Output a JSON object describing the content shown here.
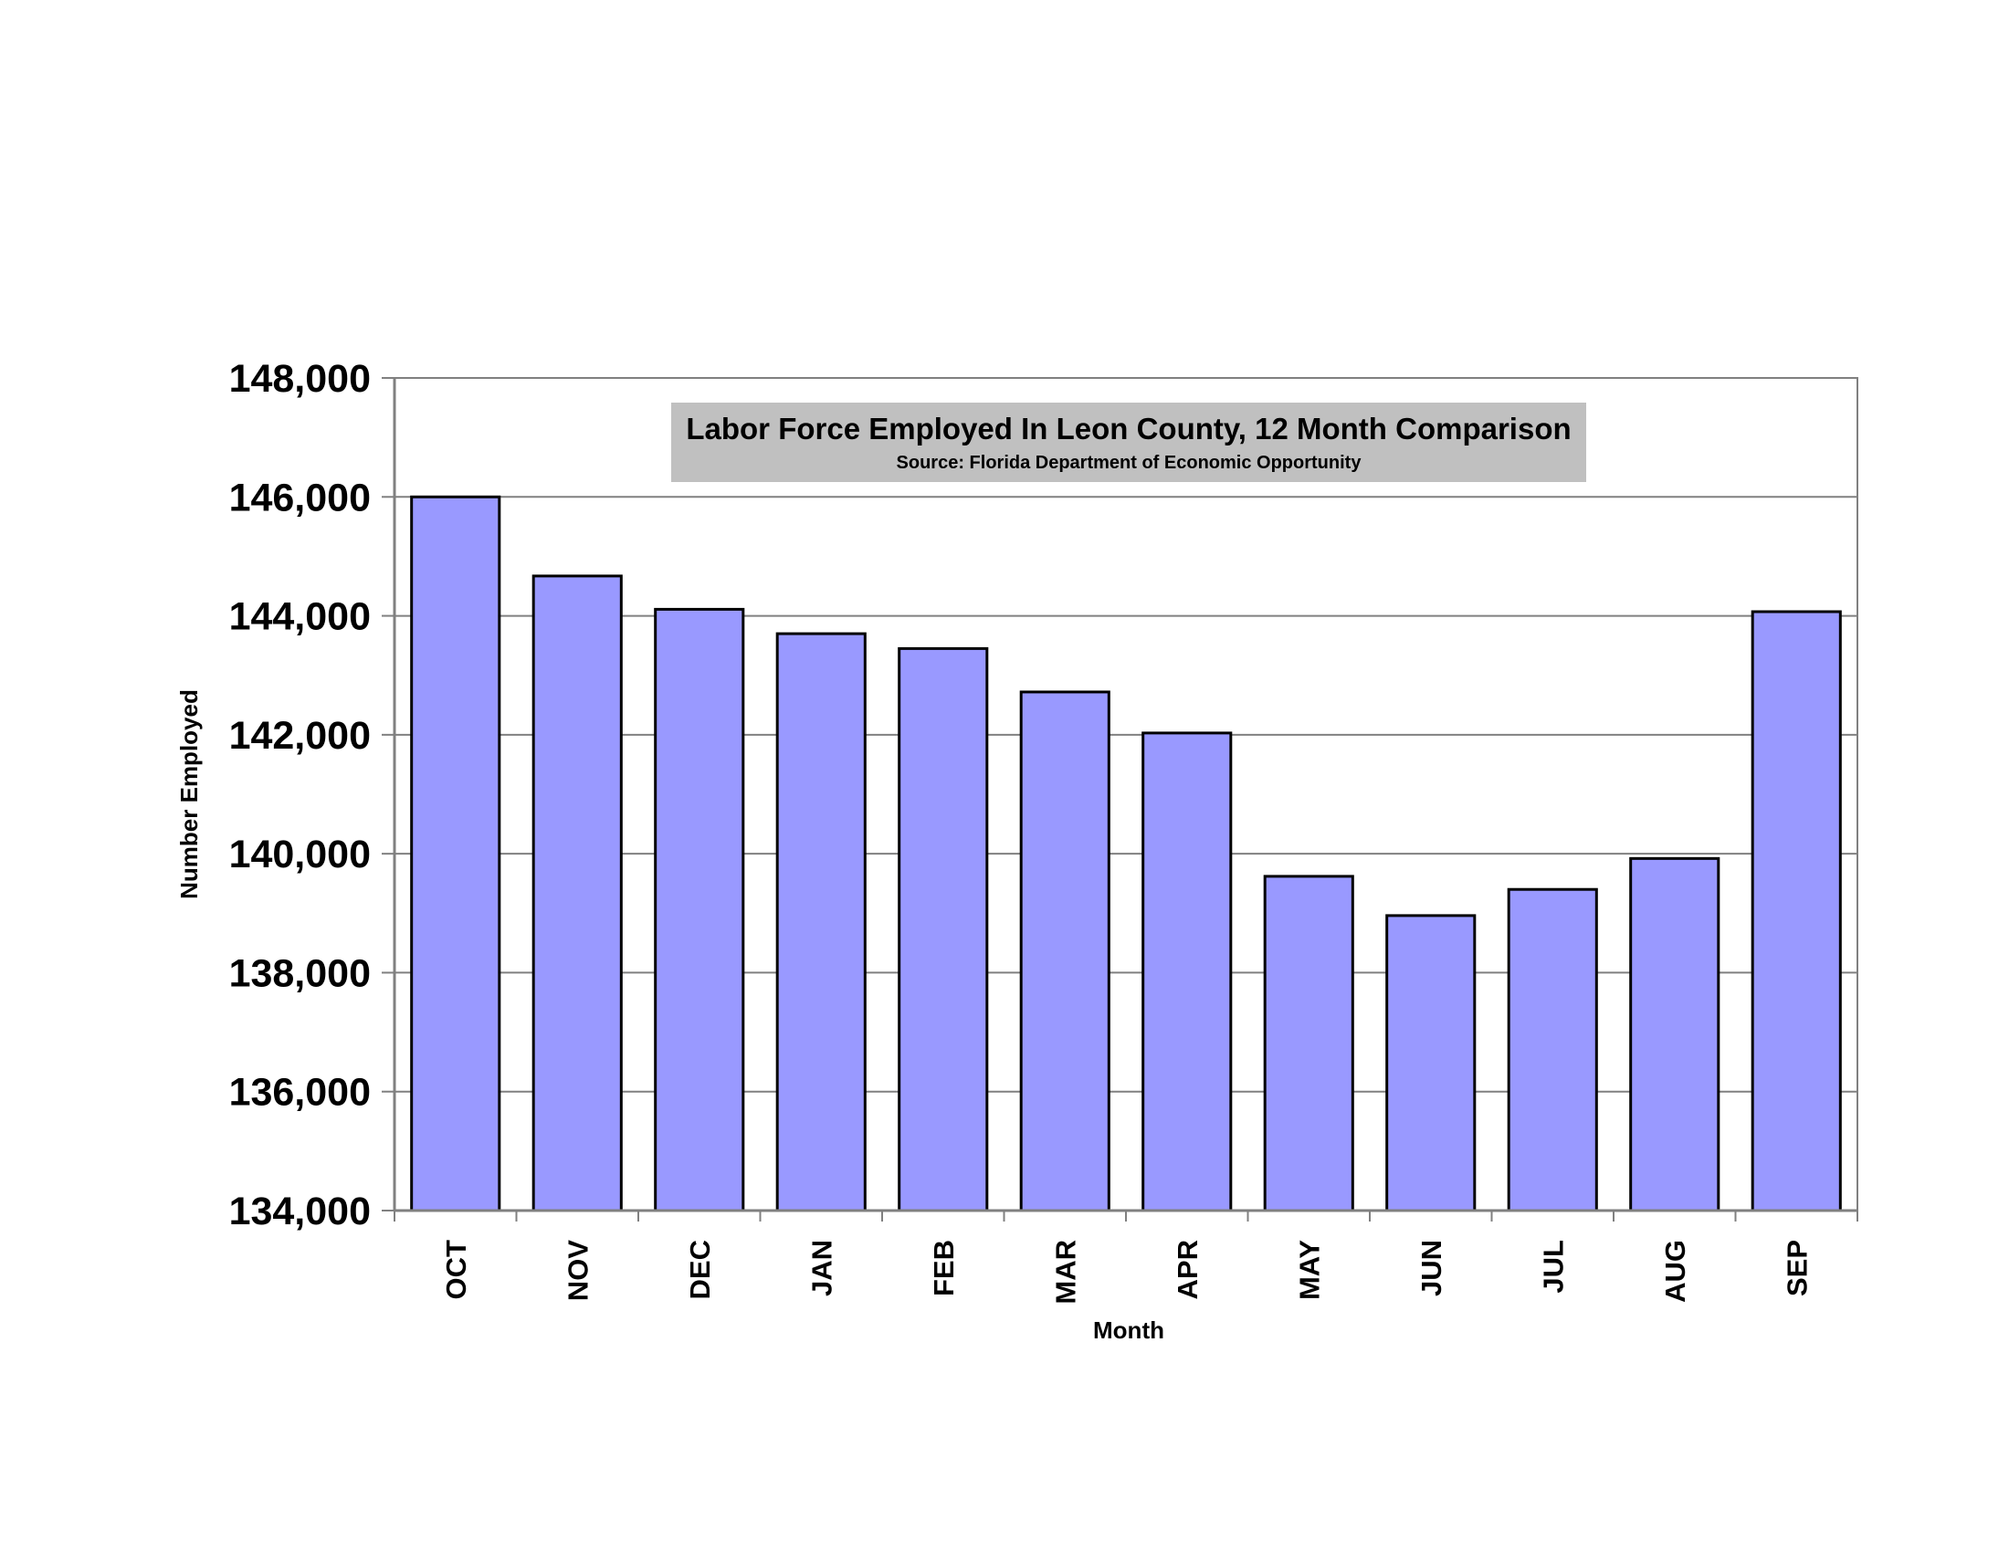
{
  "chart_data": {
    "type": "bar",
    "title": "Labor Force Employed In Leon County, 12 Month Comparison",
    "subtitle": "Source: Florida Department of Economic Opportunity",
    "xlabel": "Month",
    "ylabel": "Number Employed",
    "categories": [
      "OCT",
      "NOV",
      "DEC",
      "JAN",
      "FEB",
      "MAR",
      "APR",
      "MAY",
      "JUN",
      "JUL",
      "AUG",
      "SEP"
    ],
    "values": [
      146000,
      144670,
      144110,
      143700,
      143450,
      142720,
      142030,
      139620,
      138960,
      139400,
      139920,
      144070
    ],
    "ylim": [
      134000,
      148000
    ],
    "yticks": [
      134000,
      136000,
      138000,
      140000,
      142000,
      144000,
      146000,
      148000
    ],
    "ytick_labels": [
      "134,000",
      "136,000",
      "138,000",
      "140,000",
      "142,000",
      "144,000",
      "146,000",
      "148,000"
    ],
    "grid": true,
    "legend": "none",
    "colors": {
      "bar_fill": "#9999ff",
      "bar_stroke": "#000000",
      "title_box": "#c0c0c0",
      "gridline": "#808080"
    }
  }
}
